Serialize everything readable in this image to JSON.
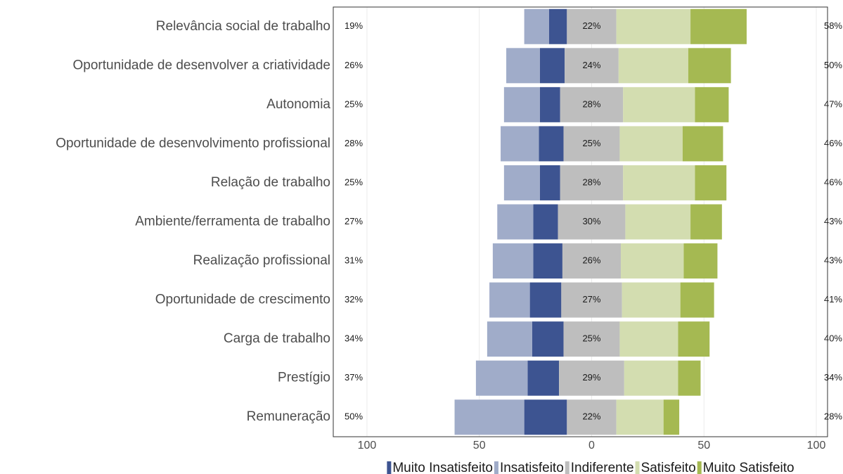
{
  "chart_data": {
    "type": "diverging_bar",
    "categories": [
      "Relevância social de trabalho",
      "Oportunidade de desenvolver a criatividade",
      "Autonomia",
      "Oportunidade de desenvolvimento profissional",
      "Relação de trabalho",
      "Ambiente/ferramenta de trabalho",
      "Realização profissional",
      "Oportunidade de crescimento",
      "Carga de trabalho",
      "Prestígio",
      "Remuneração"
    ],
    "series": [
      {
        "name": "Muito Insatisfeito",
        "color": "#3d5491",
        "side": "left",
        "values": [
          8,
          11,
          9,
          11,
          9,
          11,
          13,
          14,
          14,
          14,
          19
        ]
      },
      {
        "name": "Insatisfeito",
        "color": "#a0acc9",
        "side": "left",
        "values": [
          11,
          15,
          16,
          17,
          16,
          16,
          18,
          18,
          20,
          23,
          31
        ]
      },
      {
        "name": "Indiferente",
        "color": "#bebebe",
        "side": "center",
        "values": [
          22,
          24,
          28,
          25,
          28,
          30,
          26,
          27,
          25,
          29,
          22
        ],
        "value_labels": [
          "22%",
          "24%",
          "28%",
          "25%",
          "28%",
          "30%",
          "26%",
          "27%",
          "25%",
          "29%",
          "22%"
        ]
      },
      {
        "name": "Satisfeito",
        "color": "#d3ddb0",
        "side": "right",
        "values": [
          33,
          31,
          32,
          28,
          32,
          29,
          28,
          26,
          26,
          24,
          21
        ]
      },
      {
        "name": "Muito Satisfeito",
        "color": "#a5b952",
        "side": "right",
        "values": [
          25,
          19,
          15,
          18,
          14,
          14,
          15,
          15,
          14,
          10,
          7
        ]
      }
    ],
    "left_labels": [
      "19%",
      "26%",
      "25%",
      "28%",
      "25%",
      "27%",
      "31%",
      "32%",
      "34%",
      "37%",
      "50%"
    ],
    "right_labels": [
      "58%",
      "50%",
      "47%",
      "46%",
      "46%",
      "43%",
      "43%",
      "41%",
      "40%",
      "34%",
      "28%"
    ],
    "xlim": [
      -115,
      105
    ],
    "xticks": [
      {
        "value": -100,
        "label": "100"
      },
      {
        "value": -50,
        "label": "50"
      },
      0,
      50,
      100
    ],
    "grid": true
  }
}
